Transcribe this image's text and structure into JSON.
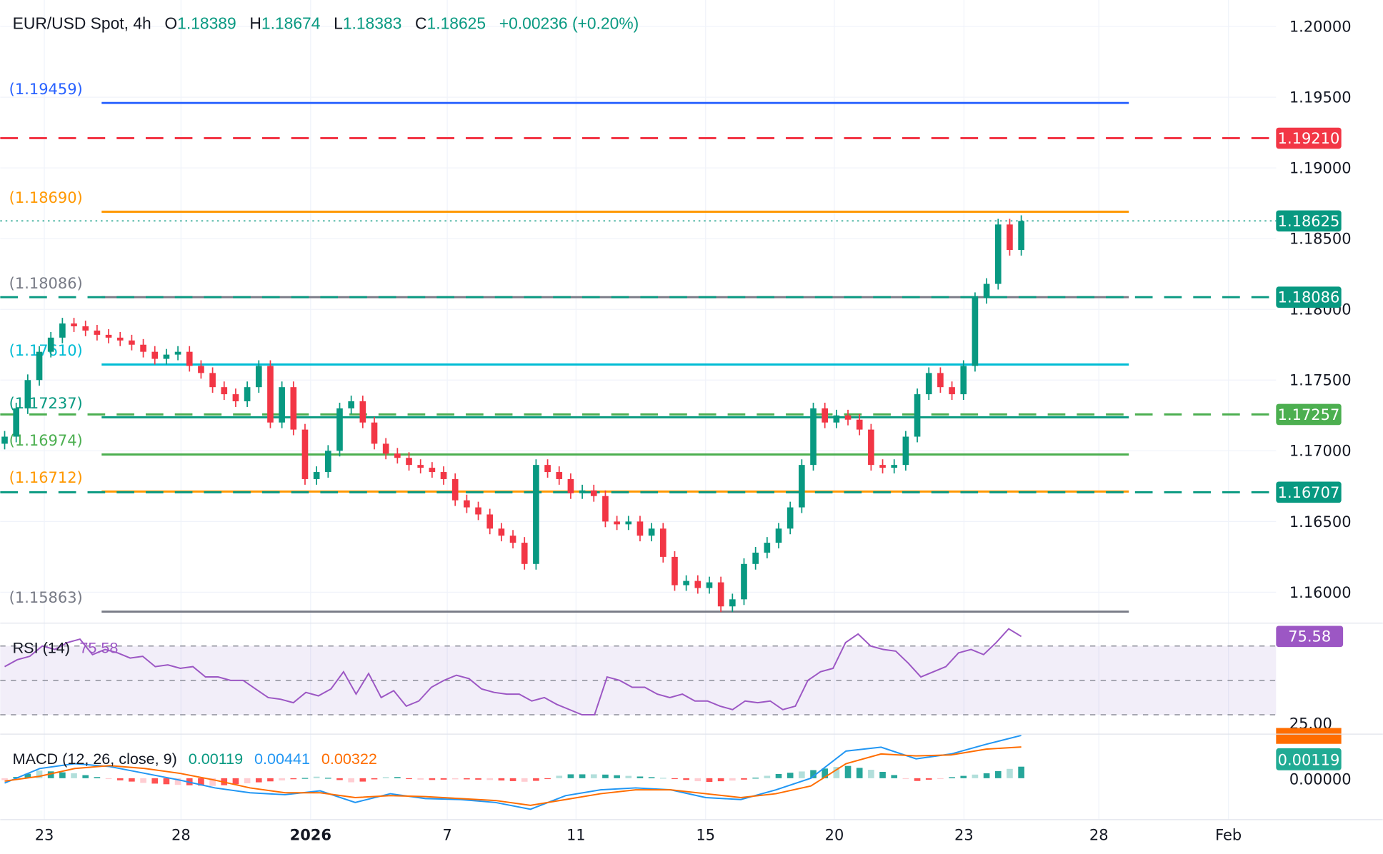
{
  "header": {
    "symbol": "EUR/USD Spot, 4h",
    "o_label": "O",
    "o": "1.18389",
    "h_label": "H",
    "h": "1.18674",
    "l_label": "L",
    "l": "1.18383",
    "c_label": "C",
    "c": "1.18625",
    "change": "+0.00236 (+0.20%)"
  },
  "colors": {
    "up": "#089981",
    "down": "#f23645",
    "rsi": "#9c57c4",
    "macd": "#2196f3",
    "signal": "#ff6d00"
  },
  "chart_data": {
    "type": "candlestick",
    "title": "EUR/USD Spot, 4h",
    "ylim": [
      1.157,
      1.202
    ],
    "y_ticks": [
      "1.20000",
      "1.19500",
      "1.19000",
      "1.18500",
      "1.18000",
      "1.17500",
      "1.17000",
      "1.16500",
      "1.16000"
    ],
    "x_ticks": [
      "23",
      "28",
      "2026",
      "7",
      "11",
      "15",
      "20",
      "23",
      "28",
      "Feb"
    ],
    "grid": true,
    "closes": [
      1.171,
      1.173,
      1.175,
      1.177,
      1.178,
      1.179,
      1.1788,
      1.1785,
      1.1782,
      1.178,
      1.1778,
      1.1775,
      1.177,
      1.1765,
      1.1768,
      1.177,
      1.176,
      1.1755,
      1.1745,
      1.174,
      1.1735,
      1.1745,
      1.176,
      1.172,
      1.1745,
      1.1715,
      1.168,
      1.1685,
      1.17,
      1.173,
      1.1735,
      1.172,
      1.1705,
      1.1698,
      1.1695,
      1.169,
      1.1688,
      1.1685,
      1.168,
      1.1665,
      1.166,
      1.1655,
      1.1645,
      1.164,
      1.1635,
      1.162,
      1.169,
      1.1685,
      1.168,
      1.167,
      1.1672,
      1.1668,
      1.165,
      1.1648,
      1.165,
      1.164,
      1.1645,
      1.1625,
      1.1605,
      1.1608,
      1.1603,
      1.1607,
      1.159,
      1.1595,
      1.162,
      1.1628,
      1.1635,
      1.1645,
      1.166,
      1.169,
      1.173,
      1.172,
      1.1725,
      1.1722,
      1.1715,
      1.169,
      1.1688,
      1.169,
      1.171,
      1.174,
      1.1755,
      1.1745,
      1.174,
      1.176,
      1.1808,
      1.1818,
      1.186,
      1.1842,
      1.18625
    ],
    "levels": [
      {
        "price": 1.19459,
        "label": "(1.19459)",
        "color": "#2962ff",
        "style": "solid",
        "span": "partial"
      },
      {
        "price": 1.1921,
        "label": "",
        "badge": "1.19210",
        "color": "#f23645",
        "style": "dashed",
        "span": "full"
      },
      {
        "price": 1.1869,
        "label": "(1.18690)",
        "color": "#ff9800",
        "style": "solid",
        "span": "partial"
      },
      {
        "price": 1.18625,
        "label": "",
        "badge": "1.18625",
        "color": "#089981",
        "style": "dotted",
        "span": "full"
      },
      {
        "price": 1.18086,
        "label": "(1.18086)",
        "color": "#787b86",
        "style": "solid",
        "span": "partial"
      },
      {
        "price": 1.18086,
        "label": "",
        "badge": "1.18086",
        "color": "#089981",
        "style": "dashed",
        "span": "full"
      },
      {
        "price": 1.1761,
        "label": "(1.17610)",
        "color": "#00bcd4",
        "style": "solid",
        "span": "partial"
      },
      {
        "price": 1.17257,
        "label": "",
        "badge": "1.17257",
        "color": "#4caf50",
        "style": "dashed",
        "span": "full"
      },
      {
        "price": 1.17237,
        "label": "(1.17237)",
        "color": "#089981",
        "style": "solid",
        "span": "partial"
      },
      {
        "price": 1.16974,
        "label": "(1.16974)",
        "color": "#4caf50",
        "style": "solid",
        "span": "partial"
      },
      {
        "price": 1.16712,
        "label": "(1.16712)",
        "color": "#ff9800",
        "style": "solid",
        "span": "partial"
      },
      {
        "price": 1.16707,
        "label": "",
        "badge": "1.16707",
        "color": "#089981",
        "style": "dashed",
        "span": "full"
      },
      {
        "price": 1.15863,
        "label": "(1.15863)",
        "color": "#787b86",
        "style": "solid",
        "span": "partial"
      }
    ],
    "rsi": {
      "title": "RSI (14)",
      "value": "75.58",
      "axis_label": "25.00",
      "bands": [
        70,
        50,
        30
      ],
      "values": [
        58,
        62,
        64,
        70,
        68,
        72,
        74,
        65,
        68,
        66,
        63,
        64,
        58,
        59,
        57,
        58,
        52,
        52,
        50,
        50,
        45,
        40,
        39,
        37,
        43,
        41,
        45,
        55,
        42,
        54,
        40,
        44,
        35,
        38,
        46,
        50,
        53,
        51,
        45,
        43,
        42,
        42,
        38,
        40,
        36,
        33,
        30,
        30,
        52,
        50,
        46,
        46,
        42,
        40,
        42,
        38,
        38,
        35,
        33,
        38,
        37,
        38,
        33,
        35,
        50,
        55,
        57,
        72,
        77,
        70,
        68,
        67,
        60,
        52,
        55,
        58,
        66,
        68,
        65,
        72,
        80,
        75.58
      ]
    },
    "macd": {
      "title": "MACD (12, 26, close, 9)",
      "histogram_value": "0.00119",
      "macd_value": "0.00441",
      "signal_value": "0.00322",
      "axis_label": "0.00000",
      "macd": [
        -0.0005,
        0.001,
        0.0015,
        0.0012,
        0.0005,
        -0.0002,
        -0.001,
        -0.0015,
        -0.0017,
        -0.0013,
        -0.0025,
        -0.0016,
        -0.0021,
        -0.0022,
        -0.0025,
        -0.0032,
        -0.0018,
        -0.0012,
        -0.001,
        -0.0012,
        -0.002,
        -0.0022,
        -0.0012,
        0.0,
        0.0028,
        0.0032,
        0.002,
        0.0025,
        0.0035,
        0.00441
      ],
      "signal": [
        -0.0003,
        0.0002,
        0.001,
        0.0013,
        0.001,
        0.0005,
        -0.0002,
        -0.001,
        -0.0015,
        -0.0015,
        -0.002,
        -0.0018,
        -0.0019,
        -0.0021,
        -0.0023,
        -0.0028,
        -0.0022,
        -0.0016,
        -0.0012,
        -0.0012,
        -0.0016,
        -0.002,
        -0.0016,
        -0.0008,
        0.0015,
        0.0025,
        0.0023,
        0.0024,
        0.003,
        0.00322
      ]
    }
  }
}
